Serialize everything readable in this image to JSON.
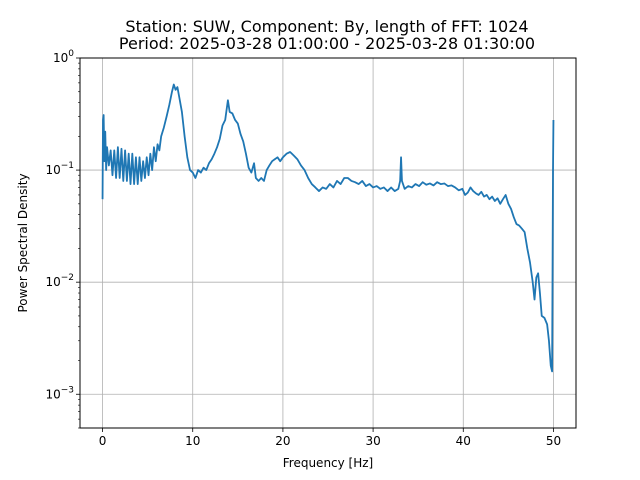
{
  "chart_data": {
    "type": "line",
    "title_line1": "Station: SUW, Component: By, length of FFT: 1024",
    "title_line2": "Period: 2025-03-28 01:00:00 - 2025-03-28 01:30:00",
    "xlabel": "Frequency [Hz]",
    "ylabel": "Power Spectral Density",
    "xlim": [
      -2.5,
      52.5
    ],
    "ylim": [
      0.0005,
      1
    ],
    "yscale": "log",
    "grid": true,
    "x_ticks": [
      0,
      10,
      20,
      30,
      40,
      50
    ],
    "x_tick_labels": [
      "0",
      "10",
      "20",
      "30",
      "40",
      "50"
    ],
    "y_ticks": [
      0.001,
      0.01,
      0.1,
      1
    ],
    "y_tick_labels": [
      {
        "base": "10",
        "exp": "−3"
      },
      {
        "base": "10",
        "exp": "−2"
      },
      {
        "base": "10",
        "exp": "−1"
      },
      {
        "base": "10",
        "exp": "0"
      }
    ],
    "series": [
      {
        "color": "#1f77b4",
        "points": [
          [
            0,
            0.055
          ],
          [
            0.05,
            0.28
          ],
          [
            0.12,
            0.31
          ],
          [
            0.2,
            0.12
          ],
          [
            0.3,
            0.22
          ],
          [
            0.4,
            0.1
          ],
          [
            0.5,
            0.16
          ],
          [
            0.7,
            0.11
          ],
          [
            0.9,
            0.15
          ],
          [
            1.1,
            0.09
          ],
          [
            1.3,
            0.15
          ],
          [
            1.5,
            0.085
          ],
          [
            1.7,
            0.16
          ],
          [
            1.9,
            0.085
          ],
          [
            2.1,
            0.155
          ],
          [
            2.3,
            0.08
          ],
          [
            2.5,
            0.15
          ],
          [
            2.7,
            0.08
          ],
          [
            2.9,
            0.14
          ],
          [
            3.1,
            0.075
          ],
          [
            3.3,
            0.14
          ],
          [
            3.5,
            0.075
          ],
          [
            3.7,
            0.13
          ],
          [
            3.9,
            0.075
          ],
          [
            4.1,
            0.13
          ],
          [
            4.3,
            0.08
          ],
          [
            4.5,
            0.12
          ],
          [
            4.7,
            0.085
          ],
          [
            4.9,
            0.13
          ],
          [
            5.1,
            0.09
          ],
          [
            5.3,
            0.14
          ],
          [
            5.5,
            0.1
          ],
          [
            5.7,
            0.16
          ],
          [
            5.9,
            0.12
          ],
          [
            6.1,
            0.17
          ],
          [
            6.3,
            0.15
          ],
          [
            6.5,
            0.2
          ],
          [
            6.8,
            0.24
          ],
          [
            7.1,
            0.3
          ],
          [
            7.4,
            0.38
          ],
          [
            7.7,
            0.5
          ],
          [
            7.9,
            0.58
          ],
          [
            8.1,
            0.52
          ],
          [
            8.3,
            0.55
          ],
          [
            8.5,
            0.45
          ],
          [
            8.8,
            0.33
          ],
          [
            9.1,
            0.2
          ],
          [
            9.4,
            0.13
          ],
          [
            9.7,
            0.1
          ],
          [
            10.0,
            0.095
          ],
          [
            10.3,
            0.085
          ],
          [
            10.6,
            0.1
          ],
          [
            10.9,
            0.095
          ],
          [
            11.2,
            0.105
          ],
          [
            11.5,
            0.1
          ],
          [
            11.8,
            0.115
          ],
          [
            12.1,
            0.125
          ],
          [
            12.4,
            0.14
          ],
          [
            12.7,
            0.16
          ],
          [
            13.0,
            0.19
          ],
          [
            13.3,
            0.25
          ],
          [
            13.6,
            0.28
          ],
          [
            13.9,
            0.42
          ],
          [
            14.1,
            0.33
          ],
          [
            14.4,
            0.32
          ],
          [
            14.7,
            0.28
          ],
          [
            15.0,
            0.26
          ],
          [
            15.3,
            0.21
          ],
          [
            15.6,
            0.18
          ],
          [
            15.9,
            0.14
          ],
          [
            16.2,
            0.105
          ],
          [
            16.5,
            0.095
          ],
          [
            16.8,
            0.115
          ],
          [
            17.0,
            0.085
          ],
          [
            17.3,
            0.08
          ],
          [
            17.6,
            0.085
          ],
          [
            17.9,
            0.08
          ],
          [
            18.2,
            0.1
          ],
          [
            18.5,
            0.11
          ],
          [
            18.8,
            0.12
          ],
          [
            19.1,
            0.125
          ],
          [
            19.4,
            0.13
          ],
          [
            19.7,
            0.12
          ],
          [
            20.0,
            0.13
          ],
          [
            20.4,
            0.14
          ],
          [
            20.8,
            0.145
          ],
          [
            21.2,
            0.135
          ],
          [
            21.6,
            0.125
          ],
          [
            22.0,
            0.11
          ],
          [
            22.4,
            0.1
          ],
          [
            22.8,
            0.085
          ],
          [
            23.2,
            0.075
          ],
          [
            23.6,
            0.07
          ],
          [
            24.0,
            0.065
          ],
          [
            24.4,
            0.07
          ],
          [
            24.8,
            0.068
          ],
          [
            25.2,
            0.075
          ],
          [
            25.6,
            0.07
          ],
          [
            26.0,
            0.08
          ],
          [
            26.4,
            0.075
          ],
          [
            26.8,
            0.085
          ],
          [
            27.2,
            0.085
          ],
          [
            27.6,
            0.08
          ],
          [
            28.0,
            0.078
          ],
          [
            28.4,
            0.075
          ],
          [
            28.8,
            0.08
          ],
          [
            29.2,
            0.072
          ],
          [
            29.6,
            0.075
          ],
          [
            30.0,
            0.07
          ],
          [
            30.4,
            0.072
          ],
          [
            30.8,
            0.068
          ],
          [
            31.2,
            0.07
          ],
          [
            31.6,
            0.065
          ],
          [
            32.0,
            0.07
          ],
          [
            32.4,
            0.065
          ],
          [
            32.8,
            0.068
          ],
          [
            33.0,
            0.08
          ],
          [
            33.1,
            0.13
          ],
          [
            33.2,
            0.08
          ],
          [
            33.5,
            0.068
          ],
          [
            33.9,
            0.072
          ],
          [
            34.3,
            0.07
          ],
          [
            34.7,
            0.075
          ],
          [
            35.1,
            0.072
          ],
          [
            35.5,
            0.078
          ],
          [
            35.9,
            0.074
          ],
          [
            36.3,
            0.076
          ],
          [
            36.7,
            0.073
          ],
          [
            37.1,
            0.078
          ],
          [
            37.5,
            0.075
          ],
          [
            37.9,
            0.076
          ],
          [
            38.3,
            0.072
          ],
          [
            38.7,
            0.073
          ],
          [
            39.1,
            0.07
          ],
          [
            39.5,
            0.066
          ],
          [
            39.9,
            0.068
          ],
          [
            40.2,
            0.06
          ],
          [
            40.5,
            0.063
          ],
          [
            40.8,
            0.07
          ],
          [
            41.1,
            0.065
          ],
          [
            41.4,
            0.062
          ],
          [
            41.7,
            0.06
          ],
          [
            42.0,
            0.064
          ],
          [
            42.3,
            0.058
          ],
          [
            42.6,
            0.06
          ],
          [
            42.9,
            0.055
          ],
          [
            43.2,
            0.058
          ],
          [
            43.5,
            0.053
          ],
          [
            43.8,
            0.056
          ],
          [
            44.1,
            0.05
          ],
          [
            44.4,
            0.055
          ],
          [
            44.7,
            0.06
          ],
          [
            45.0,
            0.05
          ],
          [
            45.3,
            0.045
          ],
          [
            45.6,
            0.038
          ],
          [
            45.9,
            0.033
          ],
          [
            46.2,
            0.032
          ],
          [
            46.5,
            0.03
          ],
          [
            46.8,
            0.028
          ],
          [
            47.1,
            0.02
          ],
          [
            47.4,
            0.015
          ],
          [
            47.7,
            0.01
          ],
          [
            47.9,
            0.007
          ],
          [
            48.1,
            0.011
          ],
          [
            48.3,
            0.012
          ],
          [
            48.5,
            0.008
          ],
          [
            48.7,
            0.005
          ],
          [
            49.0,
            0.0048
          ],
          [
            49.3,
            0.0042
          ],
          [
            49.5,
            0.003
          ],
          [
            49.7,
            0.0018
          ],
          [
            49.85,
            0.0016
          ],
          [
            49.95,
            0.1
          ],
          [
            50.0,
            0.28
          ]
        ]
      }
    ]
  }
}
